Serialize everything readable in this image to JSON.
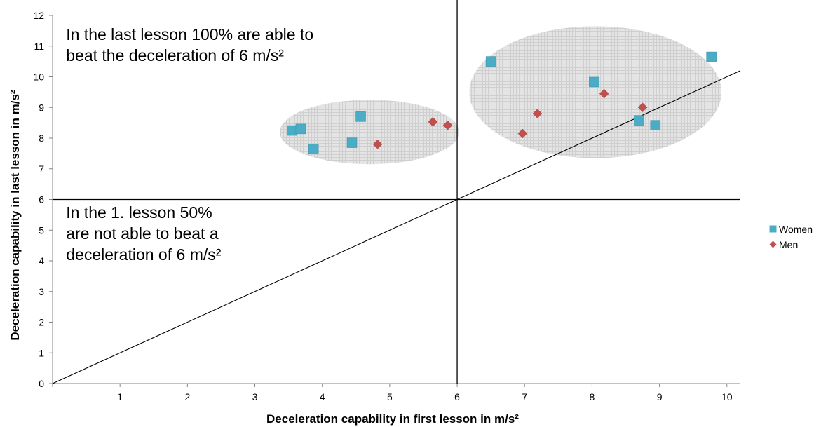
{
  "chart_data": {
    "type": "scatter",
    "xlabel": "Deceleration capability  in first lesson in m/s²",
    "ylabel": "Deceleration capability  in  last lesson in m/s²",
    "xlim": [
      0,
      10.2
    ],
    "ylim": [
      0,
      12
    ],
    "xticks": [
      1,
      2,
      3,
      4,
      5,
      6,
      7,
      8,
      9,
      10
    ],
    "yticks": [
      0,
      1,
      2,
      3,
      4,
      5,
      6,
      7,
      8,
      9,
      10,
      11,
      12
    ],
    "grid": false,
    "legend_position": "right",
    "series": [
      {
        "name": "Women",
        "marker": "square",
        "color": "#4BACC6",
        "points": [
          {
            "x": 3.55,
            "y": 8.25
          },
          {
            "x": 3.68,
            "y": 8.3
          },
          {
            "x": 3.87,
            "y": 7.65
          },
          {
            "x": 4.44,
            "y": 7.85
          },
          {
            "x": 4.57,
            "y": 8.7
          },
          {
            "x": 6.5,
            "y": 10.5
          },
          {
            "x": 8.03,
            "y": 9.83
          },
          {
            "x": 8.7,
            "y": 8.58
          },
          {
            "x": 8.94,
            "y": 8.42
          },
          {
            "x": 9.77,
            "y": 10.65
          }
        ]
      },
      {
        "name": "Men",
        "marker": "diamond",
        "color": "#C0504D",
        "points": [
          {
            "x": 4.82,
            "y": 7.8
          },
          {
            "x": 5.64,
            "y": 8.53
          },
          {
            "x": 5.86,
            "y": 8.42
          },
          {
            "x": 6.97,
            "y": 8.15
          },
          {
            "x": 7.19,
            "y": 8.8
          },
          {
            "x": 8.18,
            "y": 9.45
          },
          {
            "x": 8.75,
            "y": 9.0
          }
        ]
      }
    ],
    "reference_lines": [
      {
        "kind": "vertical",
        "x": 6
      },
      {
        "kind": "horizontal",
        "y": 6
      },
      {
        "kind": "diagonal",
        "from": [
          0,
          0
        ],
        "to": [
          10.2,
          10.2
        ]
      }
    ],
    "clusters": [
      {
        "center": [
          4.7,
          8.2
        ],
        "radius": [
          1.33,
          1.05
        ]
      },
      {
        "center": [
          8.05,
          9.5
        ],
        "radius": [
          1.87,
          2.15
        ]
      }
    ],
    "annotations": [
      {
        "lines": [
          "In the last lesson 100% are able to",
          "beat the deceleration of 6 m/s²"
        ],
        "anchor": [
          0.2,
          11.2
        ]
      },
      {
        "lines": [
          "In the 1. lesson 50%",
          "are not able to beat a",
          "deceleration of 6 m/s²"
        ],
        "anchor": [
          0.2,
          5.4
        ]
      }
    ]
  }
}
